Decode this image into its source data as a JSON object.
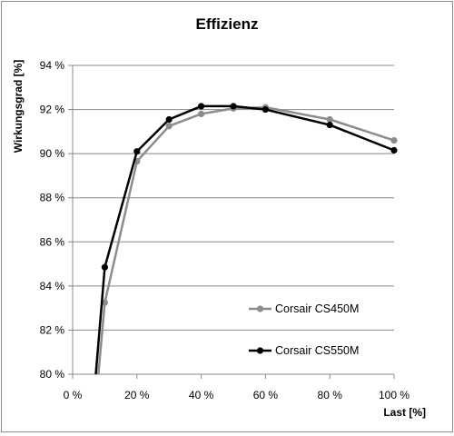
{
  "chart_data": {
    "type": "line",
    "title": "Effizienz",
    "xlabel": "Last [%]",
    "ylabel": "Wirkungsgrad [%]",
    "xlim": [
      0,
      100
    ],
    "ylim": [
      80,
      94
    ],
    "x_ticks": [
      0,
      20,
      40,
      60,
      80,
      100
    ],
    "y_ticks": [
      80,
      82,
      84,
      86,
      88,
      90,
      92,
      94
    ],
    "x_tick_labels": [
      "0 %",
      "20 %",
      "40 %",
      "60 %",
      "80 %",
      "100 %"
    ],
    "y_tick_labels": [
      "80 %",
      "82 %",
      "84 %",
      "86 %",
      "88 %",
      "90 %",
      "92 %",
      "94 %"
    ],
    "grid": "horizontal",
    "legend_position": "lower-right, inside plot",
    "series": [
      {
        "name": "Corsair CS450M",
        "color": "#8c8c8c",
        "x": [
          8,
          10,
          20,
          30,
          40,
          50,
          60,
          80,
          100
        ],
        "y": [
          80,
          83.25,
          89.65,
          91.25,
          91.8,
          92.05,
          92.1,
          91.55,
          90.6
        ],
        "markers": [
          false,
          true,
          true,
          true,
          true,
          true,
          true,
          true,
          true
        ]
      },
      {
        "name": "Corsair CS550M",
        "color": "#000000",
        "x": [
          7.2,
          10,
          20,
          30,
          40,
          50,
          60,
          80,
          100
        ],
        "y": [
          80,
          84.85,
          90.1,
          91.55,
          92.15,
          92.15,
          92.0,
          91.3,
          90.15
        ],
        "markers": [
          false,
          true,
          true,
          true,
          true,
          true,
          true,
          true,
          true
        ]
      }
    ]
  }
}
